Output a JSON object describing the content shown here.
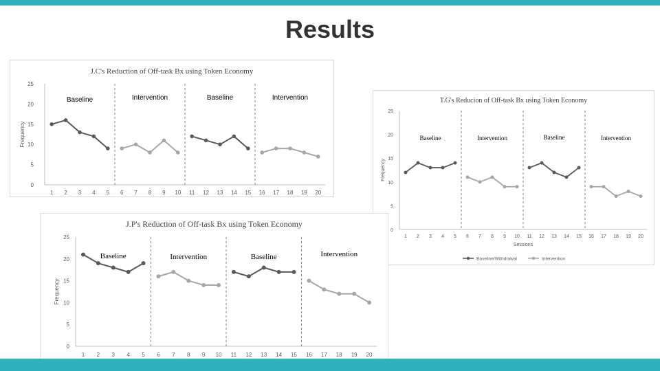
{
  "slide": {
    "title": "Results"
  },
  "colors": {
    "accent": "#2fb2bb",
    "baseline": "#595959",
    "intervention": "#a6a6a6",
    "divider": "#7f7f7f"
  },
  "chart_data": [
    {
      "id": "jc",
      "type": "line",
      "title": "J.C's Reduction  of Off-task Bx using Token Economy",
      "ylabel": "Frequency",
      "xlabel": "",
      "ylim": [
        0,
        25
      ],
      "yticks": [
        0,
        5,
        10,
        15,
        20,
        25
      ],
      "phases": [
        {
          "label": "Baseline",
          "kind": "baseline",
          "x": [
            1,
            2,
            3,
            4,
            5
          ],
          "y": [
            15,
            16,
            13,
            12,
            9
          ]
        },
        {
          "label": "Intervention",
          "kind": "intervention",
          "x": [
            6,
            7,
            8,
            9,
            10
          ],
          "y": [
            9,
            10,
            8,
            11,
            8
          ]
        },
        {
          "label": "Baseline",
          "kind": "baseline",
          "x": [
            11,
            12,
            13,
            14,
            15
          ],
          "y": [
            12,
            11,
            10,
            12,
            9
          ]
        },
        {
          "label": "Intervention",
          "kind": "intervention",
          "x": [
            16,
            17,
            18,
            19,
            20
          ],
          "y": [
            8,
            9,
            9,
            8,
            7
          ]
        }
      ]
    },
    {
      "id": "tg",
      "type": "line",
      "title": "T.G's Reducion  of Off-task Bx using Token Economy",
      "ylabel": "Frequency",
      "xlabel": "Sessions",
      "ylim": [
        0,
        25
      ],
      "yticks": [
        0,
        5,
        10,
        15,
        20,
        25
      ],
      "legend": [
        "Baseline/Withdrawal",
        "Intervention"
      ],
      "phases": [
        {
          "label": "Baseline",
          "kind": "baseline",
          "x": [
            1,
            2,
            3,
            4,
            5
          ],
          "y": [
            12,
            14,
            13,
            13,
            14
          ]
        },
        {
          "label": "Intervention",
          "kind": "intervention",
          "x": [
            6,
            7,
            8,
            9,
            10
          ],
          "y": [
            11,
            10,
            11,
            9,
            9
          ]
        },
        {
          "label": "Baseline",
          "kind": "baseline",
          "x": [
            11,
            12,
            13,
            14,
            15
          ],
          "y": [
            13,
            14,
            12,
            11,
            13
          ]
        },
        {
          "label": "Intervention",
          "kind": "intervention",
          "x": [
            16,
            17,
            18,
            19,
            20
          ],
          "y": [
            9,
            9,
            7,
            8,
            7
          ]
        }
      ]
    },
    {
      "id": "jp",
      "type": "line",
      "title": "J.P's Reduction  of Off-task Bx using Token Economy",
      "ylabel": "Frequency",
      "xlabel": "",
      "ylim": [
        0,
        25
      ],
      "yticks": [
        0,
        5,
        10,
        15,
        20,
        25
      ],
      "phases": [
        {
          "label": "Baseline",
          "kind": "baseline",
          "x": [
            1,
            2,
            3,
            4,
            5
          ],
          "y": [
            21,
            19,
            18,
            17,
            19
          ]
        },
        {
          "label": "Intervention",
          "kind": "intervention",
          "x": [
            6,
            7,
            8,
            9,
            10
          ],
          "y": [
            16,
            17,
            15,
            14,
            14
          ]
        },
        {
          "label": "Baseline",
          "kind": "baseline",
          "x": [
            11,
            12,
            13,
            14,
            15
          ],
          "y": [
            17,
            16,
            18,
            17,
            17
          ]
        },
        {
          "label": "Intervention",
          "kind": "intervention",
          "x": [
            16,
            17,
            18,
            19,
            20
          ],
          "y": [
            15,
            13,
            12,
            12,
            10
          ]
        }
      ]
    }
  ]
}
